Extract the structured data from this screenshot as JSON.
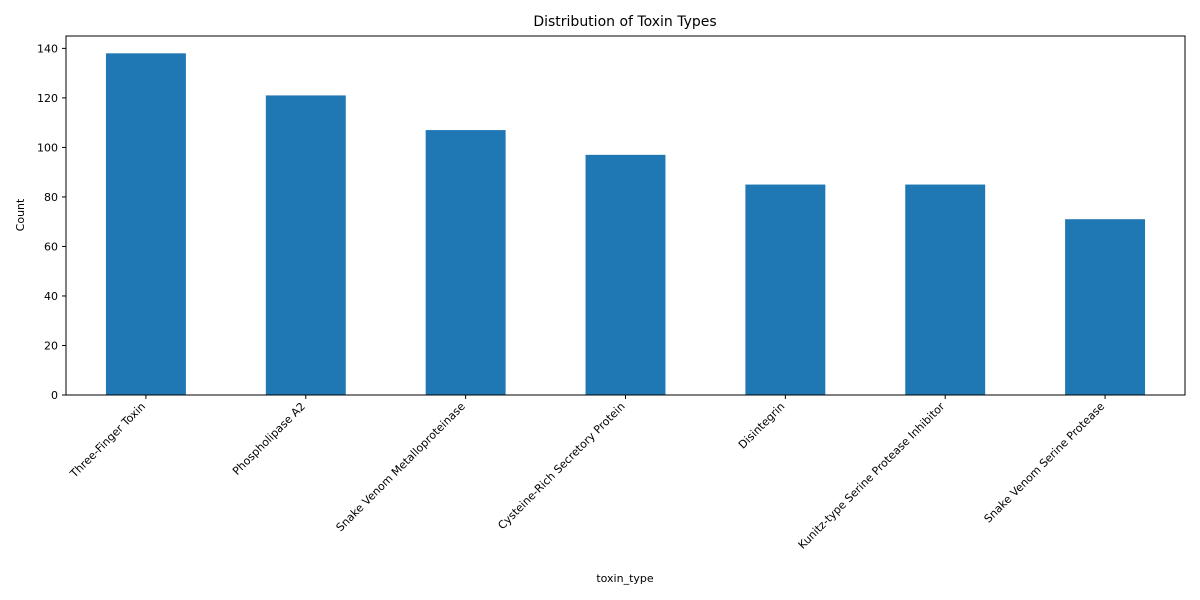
{
  "chart_data": {
    "type": "bar",
    "title": "Distribution of Toxin Types",
    "xlabel": "toxin_type",
    "ylabel": "Count",
    "categories": [
      "Three-Finger Toxin",
      "Phospholipase A2",
      "Snake Venom Metalloproteinase",
      "Cysteine-Rich Secretory Protein",
      "Disintegrin",
      "Kunitz-type Serine Protease Inhibitor",
      "Snake Venom Serine Protease"
    ],
    "values": [
      138,
      121,
      107,
      97,
      85,
      85,
      71
    ],
    "ylim": [
      0,
      145
    ],
    "yticks": [
      0,
      20,
      40,
      60,
      80,
      100,
      120,
      140
    ],
    "grid": false,
    "legend": "none",
    "bar_color": "#1f77b4"
  }
}
